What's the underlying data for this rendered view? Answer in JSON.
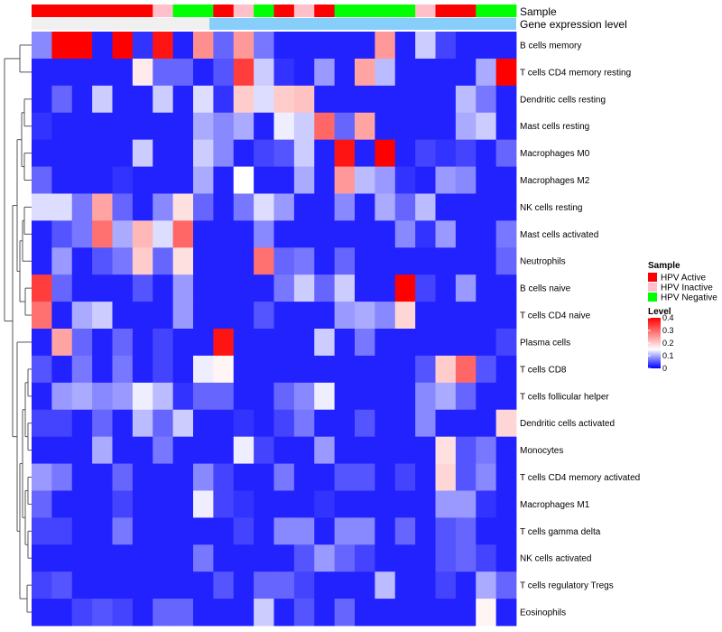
{
  "chart_data": {
    "type": "heatmap",
    "row_labels": [
      "B cells memory",
      "T cells CD4 memory resting",
      "Dendritic cells resting",
      "Mast cells resting",
      "Macrophages M0",
      "Macrophages M2",
      "NK cells resting",
      "Mast cells activated",
      "Neutrophils",
      "B cells naive",
      "T cells CD4 naive",
      "Plasma cells",
      "T cells CD8",
      "T cells follicular helper",
      "Dendritic cells activated",
      "Monocytes",
      "T cells CD4 memory activated",
      "Macrophages M1",
      "T cells gamma delta",
      "NK cells activated",
      "T cells regulatory  Tregs",
      "Eosinophils"
    ],
    "sample_annotation": {
      "label": "Sample",
      "values": [
        "HPV Active",
        "HPV Active",
        "HPV Active",
        "HPV Active",
        "HPV Active",
        "HPV Active",
        "HPV Inactive",
        "HPV Negative",
        "HPV Negative",
        "HPV Active",
        "HPV Inactive",
        "HPV Negative",
        "HPV Active",
        "HPV Inactive",
        "HPV Active",
        "HPV Negative",
        "HPV Negative",
        "HPV Negative",
        "HPV Negative",
        "HPV Inactive",
        "HPV Active",
        "HPV Active",
        "HPV Negative",
        "HPV Negative"
      ]
    },
    "gene_annotation": {
      "label": "Gene expression level"
    },
    "sample_legend": {
      "title": "Sample",
      "entries": [
        {
          "name": "HPV Active",
          "color": "#ff0000"
        },
        {
          "name": "HPV Inactive",
          "color": "#ffc0cb"
        },
        {
          "name": "HPV Negative",
          "color": "#00ff00"
        }
      ]
    },
    "level_legend": {
      "title": "Level",
      "ticks": [
        "0.4",
        "0.3",
        "0.2",
        "0.1",
        "0"
      ],
      "tick_values": [
        0.4,
        0.3,
        0.2,
        0.1,
        0
      ]
    },
    "colors": {
      "low": "#0000ff",
      "mid": "#ffffff",
      "high": "#ff0000",
      "gene_bar": "#87cefa",
      "gene_bar_light": "#f0f0f0"
    },
    "scale": {
      "min": 0,
      "mid": 0.15,
      "max": 0.4
    },
    "values": [
      [
        0.08,
        0.4,
        0.4,
        0.02,
        0.4,
        0.03,
        0.38,
        0.02,
        0.26,
        0.06,
        0.25,
        0.07,
        0.02,
        0.02,
        0.02,
        0.02,
        0.02,
        0.25,
        0.02,
        0.12,
        0.04,
        0.02,
        0.02,
        0.02
      ],
      [
        0.02,
        0.02,
        0.02,
        0.02,
        0.02,
        0.17,
        0.06,
        0.06,
        0.02,
        0.05,
        0.34,
        0.12,
        0.03,
        0.02,
        0.09,
        0.02,
        0.24,
        0.11,
        0.02,
        0.02,
        0.02,
        0.02,
        0.1,
        0.4
      ],
      [
        0.02,
        0.06,
        0.02,
        0.12,
        0.02,
        0.02,
        0.12,
        0.02,
        0.13,
        0.03,
        0.2,
        0.13,
        0.2,
        0.21,
        0.02,
        0.02,
        0.02,
        0.02,
        0.02,
        0.02,
        0.02,
        0.11,
        0.07,
        0.02
      ],
      [
        0.03,
        0.02,
        0.02,
        0.02,
        0.02,
        0.02,
        0.02,
        0.02,
        0.1,
        0.08,
        0.1,
        0.02,
        0.14,
        0.12,
        0.3,
        0.06,
        0.24,
        0.02,
        0.02,
        0.02,
        0.02,
        0.1,
        0.12,
        0.02
      ],
      [
        0.02,
        0.02,
        0.02,
        0.02,
        0.02,
        0.12,
        0.02,
        0.02,
        0.12,
        0.08,
        0.02,
        0.04,
        0.05,
        0.12,
        0.02,
        0.38,
        0.02,
        0.4,
        0.02,
        0.04,
        0.03,
        0.04,
        0.02,
        0.06
      ],
      [
        0.06,
        0.02,
        0.02,
        0.02,
        0.03,
        0.02,
        0.02,
        0.02,
        0.1,
        0.02,
        0.15,
        0.02,
        0.02,
        0.1,
        0.02,
        0.25,
        0.11,
        0.09,
        0.03,
        0.02,
        0.09,
        0.08,
        0.02,
        0.02
      ],
      [
        0.13,
        0.13,
        0.07,
        0.24,
        0.06,
        0.02,
        0.08,
        0.18,
        0.06,
        0.02,
        0.07,
        0.13,
        0.09,
        0.02,
        0.02,
        0.08,
        0.02,
        0.1,
        0.06,
        0.11,
        0.02,
        0.02,
        0.02,
        0.02
      ],
      [
        0.02,
        0.05,
        0.07,
        0.29,
        0.1,
        0.22,
        0.13,
        0.3,
        0.02,
        0.02,
        0.02,
        0.08,
        0.02,
        0.02,
        0.02,
        0.02,
        0.02,
        0.02,
        0.08,
        0.03,
        0.09,
        0.02,
        0.02,
        0.07
      ],
      [
        0.02,
        0.09,
        0.02,
        0.05,
        0.07,
        0.2,
        0.06,
        0.18,
        0.02,
        0.02,
        0.02,
        0.29,
        0.06,
        0.07,
        0.02,
        0.06,
        0.02,
        0.02,
        0.02,
        0.02,
        0.02,
        0.02,
        0.02,
        0.06
      ],
      [
        0.34,
        0.06,
        0.02,
        0.02,
        0.02,
        0.05,
        0.02,
        0.09,
        0.02,
        0.02,
        0.02,
        0.02,
        0.07,
        0.12,
        0.06,
        0.12,
        0.02,
        0.02,
        0.4,
        0.04,
        0.02,
        0.09,
        0.02,
        0.02
      ],
      [
        0.29,
        0.02,
        0.1,
        0.12,
        0.02,
        0.02,
        0.02,
        0.09,
        0.02,
        0.02,
        0.02,
        0.05,
        0.02,
        0.02,
        0.02,
        0.09,
        0.1,
        0.08,
        0.19,
        0.02,
        0.02,
        0.02,
        0.02,
        0.02
      ],
      [
        0.02,
        0.24,
        0.06,
        0.02,
        0.06,
        0.02,
        0.04,
        0.02,
        0.02,
        0.38,
        0.02,
        0.02,
        0.02,
        0.02,
        0.12,
        0.02,
        0.07,
        0.02,
        0.02,
        0.02,
        0.02,
        0.02,
        0.02,
        0.04
      ],
      [
        0.05,
        0.02,
        0.07,
        0.02,
        0.07,
        0.02,
        0.04,
        0.02,
        0.14,
        0.16,
        0.02,
        0.02,
        0.02,
        0.02,
        0.02,
        0.02,
        0.02,
        0.02,
        0.02,
        0.05,
        0.2,
        0.3,
        0.05,
        0.02
      ],
      [
        0.02,
        0.09,
        0.1,
        0.08,
        0.09,
        0.14,
        0.11,
        0.03,
        0.06,
        0.06,
        0.02,
        0.02,
        0.06,
        0.08,
        0.14,
        0.02,
        0.02,
        0.02,
        0.02,
        0.08,
        0.1,
        0.06,
        0.02,
        0.02
      ],
      [
        0.04,
        0.04,
        0.02,
        0.06,
        0.02,
        0.11,
        0.06,
        0.12,
        0.02,
        0.02,
        0.03,
        0.02,
        0.04,
        0.07,
        0.02,
        0.02,
        0.05,
        0.02,
        0.02,
        0.08,
        0.02,
        0.02,
        0.02,
        0.19
      ],
      [
        0.02,
        0.02,
        0.02,
        0.1,
        0.02,
        0.02,
        0.07,
        0.02,
        0.02,
        0.02,
        0.14,
        0.04,
        0.02,
        0.02,
        0.09,
        0.02,
        0.02,
        0.02,
        0.02,
        0.02,
        0.18,
        0.05,
        0.07,
        0.02
      ],
      [
        0.09,
        0.07,
        0.02,
        0.02,
        0.06,
        0.02,
        0.02,
        0.02,
        0.08,
        0.04,
        0.02,
        0.02,
        0.07,
        0.02,
        0.02,
        0.05,
        0.05,
        0.02,
        0.04,
        0.02,
        0.19,
        0.05,
        0.08,
        0.02
      ],
      [
        0.06,
        0.02,
        0.02,
        0.02,
        0.04,
        0.02,
        0.02,
        0.02,
        0.14,
        0.04,
        0.03,
        0.02,
        0.02,
        0.02,
        0.03,
        0.02,
        0.02,
        0.02,
        0.02,
        0.02,
        0.09,
        0.09,
        0.03,
        0.02
      ],
      [
        0.04,
        0.04,
        0.02,
        0.02,
        0.07,
        0.02,
        0.02,
        0.02,
        0.02,
        0.02,
        0.04,
        0.02,
        0.08,
        0.08,
        0.02,
        0.08,
        0.08,
        0.02,
        0.06,
        0.02,
        0.05,
        0.06,
        0.02,
        0.02
      ],
      [
        0.02,
        0.02,
        0.02,
        0.02,
        0.02,
        0.02,
        0.02,
        0.02,
        0.07,
        0.02,
        0.02,
        0.02,
        0.02,
        0.05,
        0.09,
        0.06,
        0.04,
        0.02,
        0.02,
        0.02,
        0.05,
        0.06,
        0.04,
        0.02
      ],
      [
        0.04,
        0.05,
        0.02,
        0.02,
        0.02,
        0.02,
        0.02,
        0.02,
        0.02,
        0.05,
        0.02,
        0.06,
        0.06,
        0.04,
        0.02,
        0.02,
        0.02,
        0.11,
        0.02,
        0.02,
        0.04,
        0.02,
        0.1,
        0.06
      ],
      [
        0.02,
        0.02,
        0.04,
        0.05,
        0.04,
        0.02,
        0.06,
        0.06,
        0.02,
        0.02,
        0.02,
        0.12,
        0.02,
        0.05,
        0.02,
        0.06,
        0.02,
        0.02,
        0.02,
        0.02,
        0.02,
        0.02,
        0.16,
        0.02
      ]
    ]
  }
}
